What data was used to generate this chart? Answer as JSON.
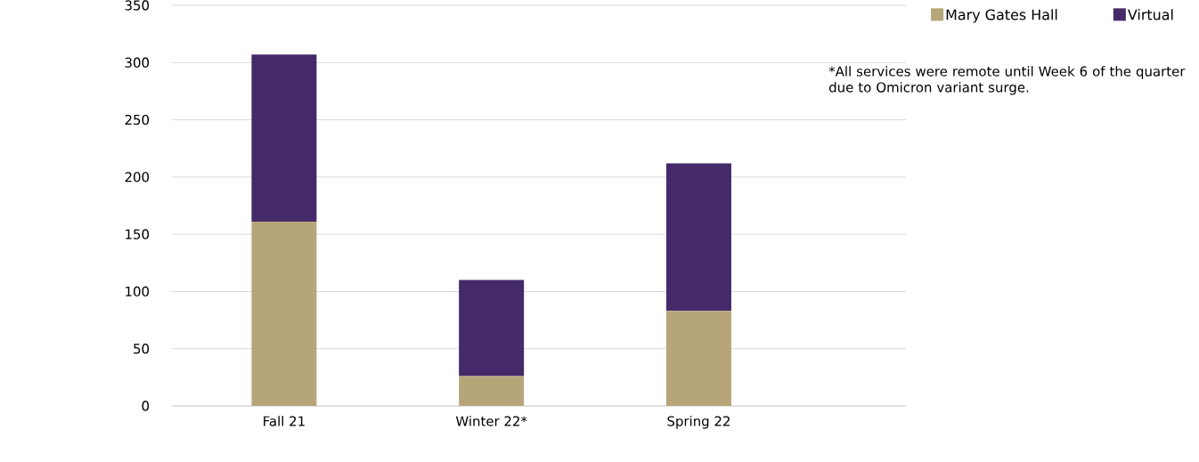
{
  "chart_data": {
    "type": "bar",
    "stacked": true,
    "categories": [
      "Fall 21",
      "Winter 22*",
      "Spring 22"
    ],
    "series": [
      {
        "name": "Mary Gates Hall",
        "color": "#b7a57a",
        "values": [
          161,
          26,
          83
        ]
      },
      {
        "name": "Virtual",
        "color": "#452a6a",
        "values": [
          146,
          84,
          129
        ]
      }
    ],
    "ylim": [
      0,
      350
    ],
    "yticks": [
      0,
      50,
      100,
      150,
      200,
      250,
      300,
      350
    ],
    "grid": "y",
    "legend": "top right",
    "annotations": [
      "*All services were remote until Week 6 of the quarter due to Omicron variant surge."
    ]
  }
}
